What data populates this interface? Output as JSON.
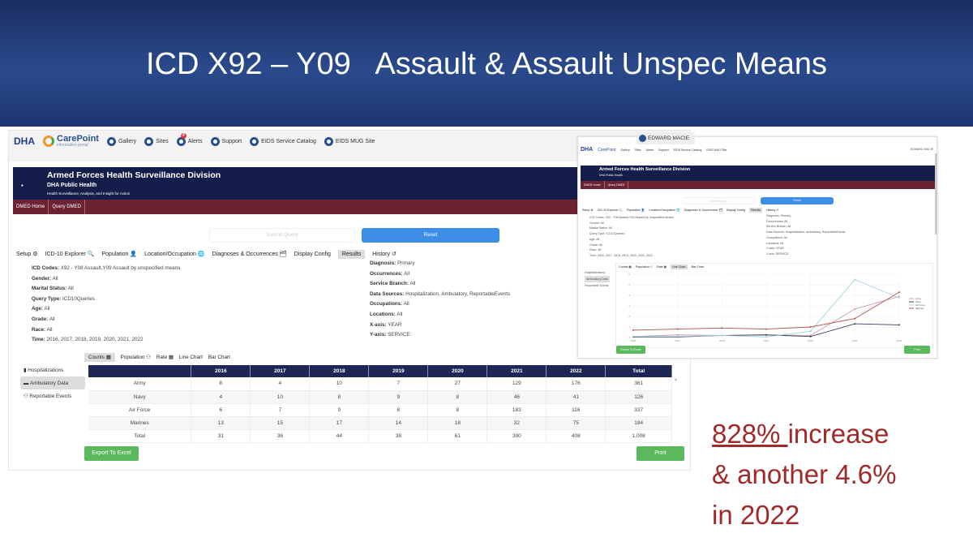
{
  "slide": {
    "title": "ICD X92 – Y09   Assault & Assault Unspec Means",
    "note": {
      "pct": "828% ",
      "line1_rest": "increase",
      "line2": "& another 4.6%",
      "line3": "in 2022"
    }
  },
  "app": {
    "logo": "DHA",
    "brand": "CarePoint",
    "brand_sub": "information portal",
    "nav": [
      {
        "label": "Gallery",
        "icon": "gallery-icon"
      },
      {
        "label": "Sites",
        "icon": "sites-icon"
      },
      {
        "label": "Alerts",
        "icon": "alerts-icon",
        "badge": "4"
      },
      {
        "label": "Support",
        "icon": "support-icon"
      },
      {
        "label": "EIDS Service Catalog",
        "icon": "catalog-icon"
      },
      {
        "label": "EIDS MUG Site",
        "icon": "mug-site-icon"
      }
    ],
    "user": "EDWARD MACIE",
    "banner": {
      "title": "Armed Forces Health Surveillance Division",
      "subtitle": "DHA Public Health",
      "tagline": "Health Surveillance, Analysis, and Insight for Action"
    },
    "menu": [
      "DMED Home",
      "Query DMED"
    ],
    "submit": "Submit Query",
    "reset": "Reset",
    "tabs": [
      "Setup ⚙",
      "ICD-10 Explorer 🔍",
      "Population 👤",
      "Location/Occupation 🌐",
      "Diagnoses & Occurrences 🗂",
      "Display Config",
      "Results",
      "History ↺"
    ],
    "details_left": [
      [
        "ICD Codes:",
        "X92 - Y08 Assault,Y09 Assault by unspecified means"
      ],
      [
        "Gender:",
        "All"
      ],
      [
        "Marital Status:",
        "All"
      ],
      [
        "Query Type:",
        "ICD10Queries"
      ],
      [
        "Age:",
        "All"
      ],
      [
        "Grade:",
        "All"
      ],
      [
        "Race:",
        "All"
      ],
      [
        "Time:",
        "2016, 2017, 2018, 2019, 2020, 2021, 2022"
      ]
    ],
    "details_right": [
      [
        "Diagnosis:",
        "Primary"
      ],
      [
        "Occurrences:",
        "All"
      ],
      [
        "Service Branch:",
        "All"
      ],
      [
        "Data Sources:",
        "Hospitalization, Ambulatory, ReportableEvents"
      ],
      [
        "Occupations:",
        "All"
      ],
      [
        "Locations:",
        "All"
      ],
      [
        "X-axis:",
        "YEAR"
      ],
      [
        "Y-axis:",
        "SERVICE"
      ]
    ],
    "side": [
      "Hospitalizations",
      "Ambulatory Data",
      "Reportable Events"
    ],
    "result_tabs": [
      "Counts ▦",
      "Population ⚇",
      "Rate ▦",
      "Line Chart",
      "Bar Chart"
    ],
    "table": {
      "headers": [
        "",
        "2016",
        "2017",
        "2018",
        "2019",
        "2020",
        "2021",
        "2022",
        "Total"
      ],
      "rows": [
        [
          "Army",
          "8",
          "4",
          "10",
          "7",
          "27",
          "129",
          "176",
          "361"
        ],
        [
          "Navy",
          "4",
          "10",
          "8",
          "9",
          "8",
          "46",
          "41",
          "126"
        ],
        [
          "Air Force",
          "6",
          "7",
          "9",
          "8",
          "8",
          "183",
          "116",
          "337"
        ],
        [
          "Marines",
          "13",
          "15",
          "17",
          "14",
          "18",
          "32",
          "75",
          "184"
        ],
        [
          "Total",
          "31",
          "36",
          "44",
          "38",
          "61",
          "390",
          "408",
          "1,008"
        ]
      ]
    },
    "export": "Export To Excel",
    "print": "Print"
  },
  "chart_data": {
    "type": "line",
    "x": [
      "2016",
      "2017",
      "2018",
      "2019",
      "2020",
      "2021",
      "2022"
    ],
    "ylim": [
      0,
      6
    ],
    "grid": true,
    "legend": "right",
    "series": [
      {
        "name": "Army",
        "color": "#c9a0a8",
        "values": [
          0.1,
          0.25,
          0.2,
          0.25,
          0.2,
          2.7,
          3.9
        ]
      },
      {
        "name": "Navy",
        "color": "#3a3f5c",
        "values": [
          0.05,
          0.05,
          0.2,
          0.25,
          0.1,
          1.3,
          1.2
        ]
      },
      {
        "name": "Air Force",
        "color": "#9fd6dc",
        "values": [
          0.1,
          0.1,
          0.2,
          0.05,
          0.6,
          5.5,
          3.75
        ]
      },
      {
        "name": "Marines",
        "color": "#b5504f",
        "values": [
          0.7,
          0.8,
          0.9,
          0.8,
          1.0,
          1.8,
          4.3
        ]
      }
    ]
  }
}
